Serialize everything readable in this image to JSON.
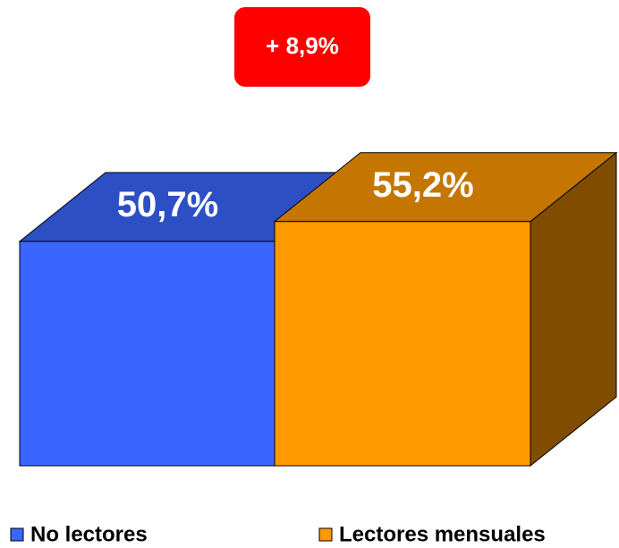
{
  "chart_data": {
    "type": "bar",
    "annotation": "+ 8,9%",
    "categories": [
      "No lectores",
      "Lectores mensuales"
    ],
    "values": [
      50.7,
      55.2
    ],
    "value_labels": [
      "50,7%",
      "55,2%"
    ],
    "colors": [
      "#3a66ff",
      "#ff9900"
    ]
  }
}
